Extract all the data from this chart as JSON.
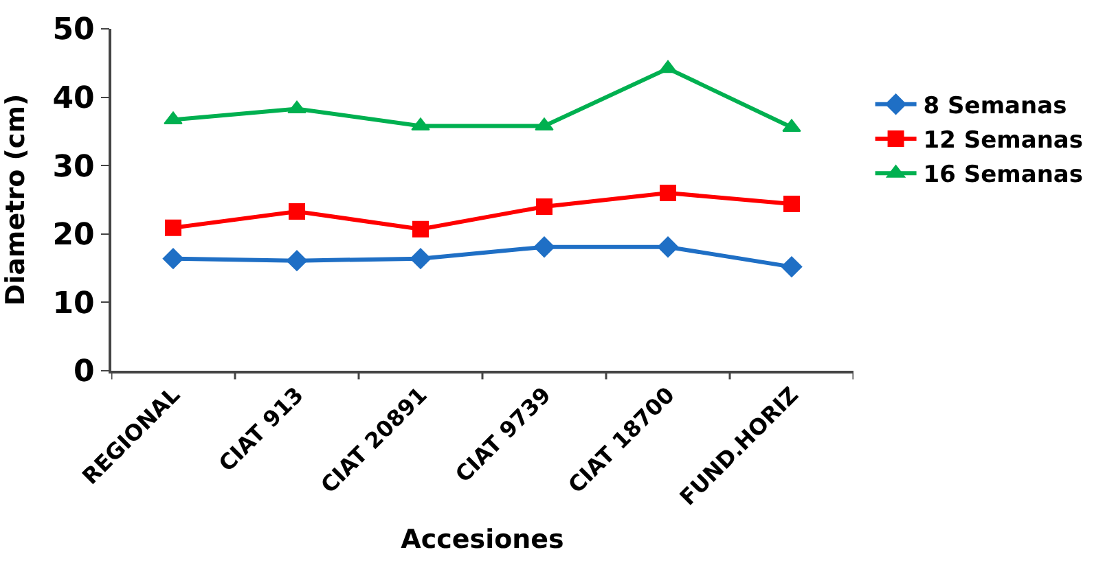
{
  "chart_data": {
    "type": "line",
    "xlabel": "Accesiones",
    "ylabel": "Diametro (cm)",
    "categories": [
      "REGIONAL",
      "CIAT 913",
      "CIAT 20891",
      "CIAT 9739",
      "CIAT 18700",
      "FUND.HORIZ"
    ],
    "series": [
      {
        "name": "8 Semanas",
        "color": "#1f6fc5",
        "marker": "diamond",
        "values": [
          16.4,
          16.1,
          16.4,
          18.1,
          18.1,
          15.2
        ]
      },
      {
        "name": "12 Semanas",
        "color": "#ff0000",
        "marker": "square",
        "values": [
          20.9,
          23.3,
          20.7,
          24.0,
          26.0,
          24.4
        ]
      },
      {
        "name": "16 Semanas",
        "color": "#00b050",
        "marker": "triangle",
        "values": [
          36.7,
          38.3,
          35.8,
          35.8,
          44.2,
          35.6
        ]
      }
    ],
    "ylim": [
      0,
      50
    ],
    "yticks": [
      0,
      10,
      20,
      30,
      40,
      50
    ],
    "legend": "right",
    "line_style": "solid"
  }
}
